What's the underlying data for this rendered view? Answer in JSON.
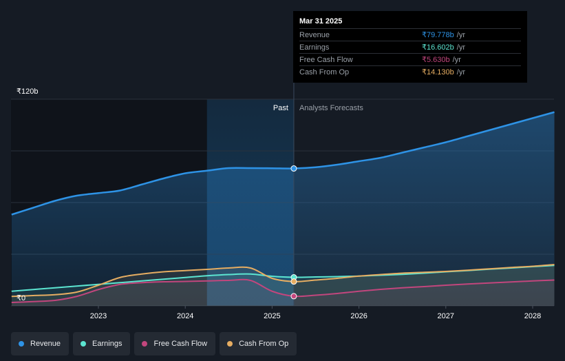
{
  "chart_data": {
    "type": "area",
    "title": "",
    "xlabel": "",
    "ylabel": "",
    "ylim": [
      0,
      120
    ],
    "y_unit": "b",
    "y_ticks": [
      {
        "value": 120,
        "label": "₹120b"
      },
      {
        "value": 0,
        "label": "₹0"
      }
    ],
    "x_ticks": [
      {
        "value": 2023,
        "label": "2023"
      },
      {
        "value": 2024,
        "label": "2024"
      },
      {
        "value": 2025,
        "label": "2025"
      },
      {
        "value": 2026,
        "label": "2026"
      },
      {
        "value": 2027,
        "label": "2027"
      },
      {
        "value": 2028,
        "label": "2028"
      }
    ],
    "xlim": [
      2021.75,
      2028.25
    ],
    "past_label": "Past",
    "forecast_label": "Analysts Forecasts",
    "divider_x": 2025.25,
    "highlight_start_x": 2024.25,
    "series": [
      {
        "name": "Revenue",
        "color": "#2e93e6",
        "x": [
          2022.0,
          2022.25,
          2022.5,
          2022.75,
          2023.0,
          2023.25,
          2023.5,
          2023.75,
          2024.0,
          2024.25,
          2024.5,
          2024.75,
          2025.0,
          2025.25,
          2025.5,
          2025.75,
          2026.0,
          2026.25,
          2026.5,
          2026.75,
          2027.0,
          2027.25,
          2027.5,
          2027.75,
          2028.0,
          2028.25
        ],
        "values": [
          53,
          57,
          61,
          64,
          65.5,
          67,
          70.5,
          74,
          77,
          78.5,
          80,
          80,
          79.9,
          79.778,
          80.5,
          82,
          84,
          86,
          89,
          92,
          95,
          98.5,
          102,
          105.5,
          109,
          112.5
        ]
      },
      {
        "name": "Earnings",
        "color": "#5ce5d1",
        "x": [
          2022.0,
          2022.25,
          2022.5,
          2022.75,
          2023.0,
          2023.25,
          2023.5,
          2023.75,
          2024.0,
          2024.25,
          2024.5,
          2024.75,
          2025.0,
          2025.25,
          2025.5,
          2025.75,
          2026.0,
          2026.25,
          2026.5,
          2026.75,
          2027.0,
          2027.25,
          2027.5,
          2027.75,
          2028.0,
          2028.25
        ],
        "values": [
          8.5,
          9.5,
          10.5,
          11.5,
          12.5,
          13.5,
          14.5,
          15.5,
          16.5,
          17.5,
          18.2,
          18.5,
          17.2,
          16.602,
          16.8,
          17,
          17.3,
          17.8,
          18.3,
          19,
          19.8,
          20.5,
          21.3,
          22,
          22.8,
          23.5
        ]
      },
      {
        "name": "Free Cash Flow",
        "color": "#c2467d",
        "x": [
          2022.0,
          2022.25,
          2022.5,
          2022.75,
          2023.0,
          2023.25,
          2023.5,
          2023.75,
          2024.0,
          2024.25,
          2024.5,
          2024.75,
          2025.0,
          2025.25,
          2025.5,
          2025.75,
          2026.0,
          2026.25,
          2026.5,
          2026.75,
          2027.0,
          2027.25,
          2027.5,
          2027.75,
          2028.0,
          2028.25
        ],
        "values": [
          2,
          2.5,
          3.2,
          5.5,
          9.5,
          12.5,
          13.5,
          14,
          14.2,
          14.5,
          14.8,
          14.8,
          8.5,
          5.63,
          6.2,
          7.2,
          8.5,
          9.6,
          10.5,
          11.2,
          12,
          12.7,
          13.3,
          13.9,
          14.5,
          15
        ]
      },
      {
        "name": "Cash From Op",
        "color": "#e6ad62",
        "x": [
          2022.0,
          2022.25,
          2022.5,
          2022.75,
          2023.0,
          2023.25,
          2023.5,
          2023.75,
          2024.0,
          2024.25,
          2024.5,
          2024.75,
          2025.0,
          2025.25,
          2025.5,
          2025.75,
          2026.0,
          2026.25,
          2026.5,
          2026.75,
          2027.0,
          2027.25,
          2027.5,
          2027.75,
          2028.0,
          2028.25
        ],
        "values": [
          5.5,
          6,
          6.5,
          8,
          12,
          16.5,
          18.5,
          19.8,
          20.5,
          21.2,
          22,
          22,
          16,
          14.13,
          15,
          16,
          17.3,
          18.2,
          19,
          19.5,
          20,
          20.7,
          21.5,
          22.3,
          23,
          24
        ]
      }
    ]
  },
  "tooltip": {
    "date": "Mar 31 2025",
    "unit": "/yr",
    "rows": [
      {
        "label": "Revenue",
        "value": "₹79.778b",
        "color": "#2e93e6"
      },
      {
        "label": "Earnings",
        "value": "₹16.602b",
        "color": "#5ce5d1"
      },
      {
        "label": "Free Cash Flow",
        "value": "₹5.630b",
        "color": "#c2467d"
      },
      {
        "label": "Cash From Op",
        "value": "₹14.130b",
        "color": "#e6ad62"
      }
    ]
  },
  "legend": [
    {
      "label": "Revenue",
      "color": "#2e93e6"
    },
    {
      "label": "Earnings",
      "color": "#5ce5d1"
    },
    {
      "label": "Free Cash Flow",
      "color": "#c2467d"
    },
    {
      "label": "Cash From Op",
      "color": "#e6ad62"
    }
  ]
}
